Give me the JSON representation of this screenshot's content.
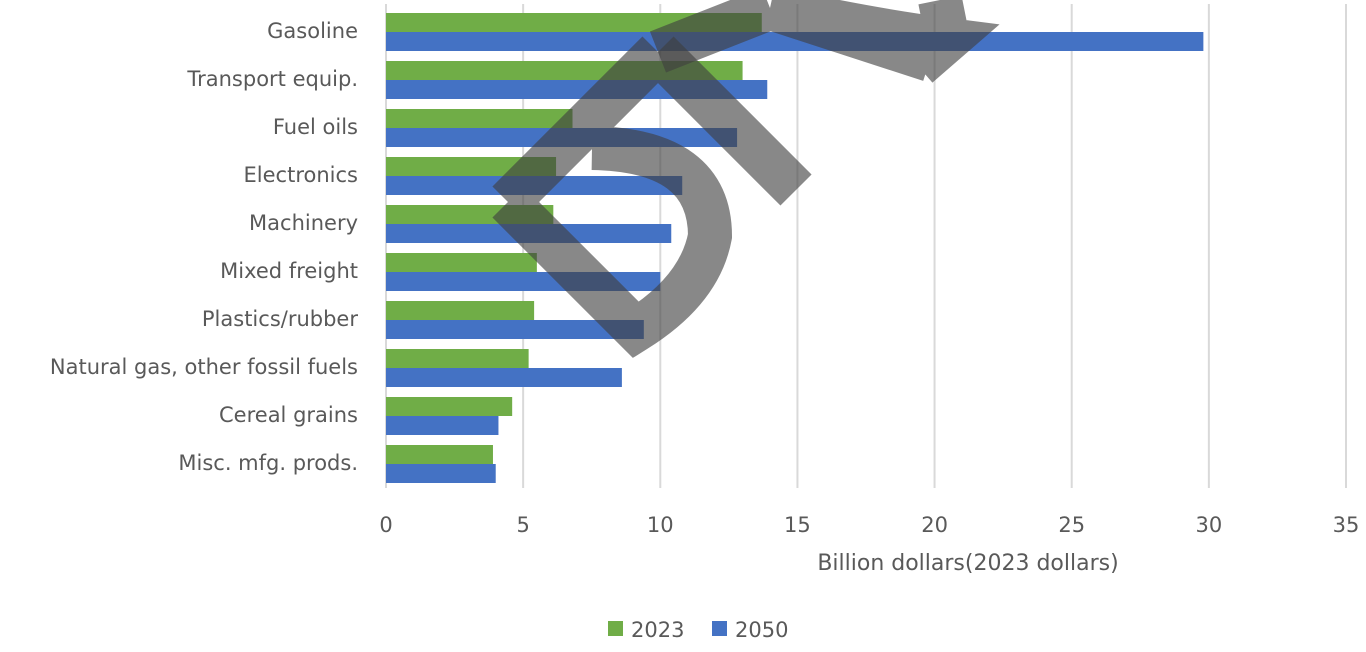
{
  "chart_data": {
    "type": "bar",
    "orientation": "horizontal",
    "categories": [
      "Gasoline",
      "Transport equip.",
      "Fuel oils",
      "Electronics",
      "Machinery",
      "Mixed freight",
      "Plastics/rubber",
      "Natural gas, other fossil fuels",
      "Cereal grains",
      "Misc. mfg. prods."
    ],
    "series": [
      {
        "name": "2023",
        "color": "#70ad47",
        "values": [
          13.7,
          13.0,
          6.8,
          6.2,
          6.1,
          5.5,
          5.4,
          5.2,
          4.6,
          3.9
        ]
      },
      {
        "name": "2050",
        "color": "#4472c4",
        "values": [
          29.8,
          13.9,
          12.8,
          10.8,
          10.4,
          10.0,
          9.4,
          8.6,
          4.1,
          4.0
        ]
      }
    ],
    "xlabel": "Billion dollars(2023 dollars)",
    "ylabel": "",
    "xlim": [
      0,
      35
    ],
    "x_ticks": [
      "0",
      "5",
      "10",
      "15",
      "20",
      "25",
      "30",
      "35"
    ],
    "grid": "vertical",
    "legend_position": "bottom"
  },
  "watermark": {
    "text": "DR",
    "color": "#404040"
  }
}
